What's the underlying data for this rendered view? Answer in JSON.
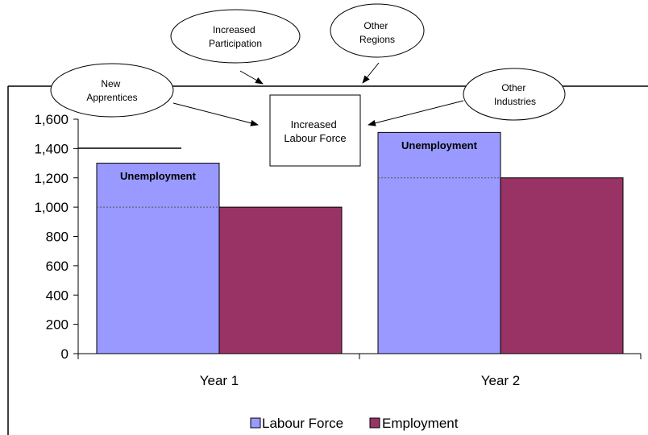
{
  "colors": {
    "labour_force": "#9999ff",
    "employment": "#993366",
    "axis": "#000000"
  },
  "callouts": {
    "increased_participation": [
      "Increased",
      "Participation"
    ],
    "other_regions": [
      "Other",
      "Regions"
    ],
    "new_apprentices": [
      "New",
      "Apprentices"
    ],
    "other_industries": [
      "Other",
      "Industries"
    ],
    "center_box": [
      "Increased",
      "Labour Force"
    ]
  },
  "chart_data": {
    "type": "bar",
    "title": "",
    "xlabel": "",
    "ylabel": "",
    "ylim": [
      0,
      1600
    ],
    "yticks": [
      0,
      200,
      400,
      600,
      800,
      "1,000",
      "1,200",
      "1,400",
      "1,600"
    ],
    "categories": [
      "Year 1",
      "Year 2"
    ],
    "series": [
      {
        "name": "Labour Force",
        "values": [
          1300,
          1510
        ]
      },
      {
        "name": "Employment",
        "values": [
          1000,
          1200
        ]
      }
    ],
    "annotations": [
      {
        "text": "Unemployment",
        "category": "Year 1"
      },
      {
        "text": "Unemployment",
        "category": "Year 2"
      }
    ],
    "legend": "bottom"
  }
}
